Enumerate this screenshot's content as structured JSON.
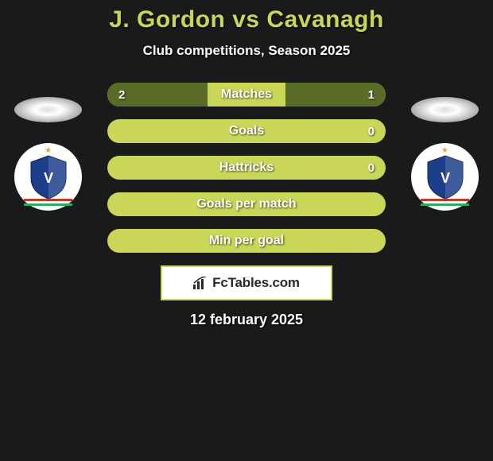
{
  "title": "J. Gordon vs Cavanagh",
  "subtitle": "Club competitions, Season 2025",
  "date": "12 february 2025",
  "watermark_text": "FcTables.com",
  "colors": {
    "accent": "#c9d657",
    "fill": "#5a6b28",
    "bg": "#1a1a1a",
    "text": "#ffffff"
  },
  "bars": [
    {
      "label": "Matches",
      "left": "2",
      "right": "1",
      "left_pct": 36,
      "right_pct": 36
    },
    {
      "label": "Goals",
      "left": "",
      "right": "0",
      "left_pct": 0,
      "right_pct": 0
    },
    {
      "label": "Hattricks",
      "left": "",
      "right": "0",
      "left_pct": 0,
      "right_pct": 0
    },
    {
      "label": "Goals per match",
      "left": "",
      "right": "",
      "left_pct": 0,
      "right_pct": 0
    },
    {
      "label": "Min per goal",
      "left": "",
      "right": "",
      "left_pct": 0,
      "right_pct": 0
    }
  ],
  "badge": {
    "shield_fill": "#1d3f8b",
    "letter_color": "#ffffff",
    "star_color": "#d4b030"
  }
}
